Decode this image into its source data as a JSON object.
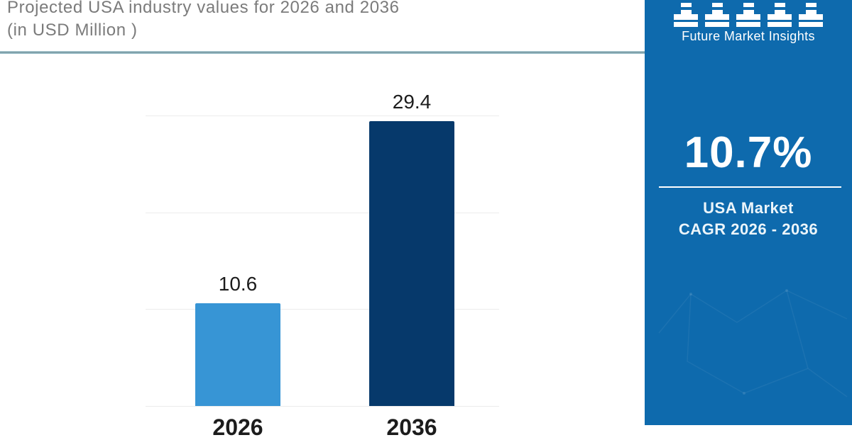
{
  "header": {
    "title_line1": "Projected USA industry values for 2026 and 2036",
    "title_line2": "(in USD Million )"
  },
  "branding": {
    "logo_icon": "bar-columns-logo",
    "logo_text": "Future Market Insights"
  },
  "side_panel": {
    "background_color": "#0e6aad",
    "cagr_value": "10.7%",
    "cagr_label_line1": "USA Market",
    "cagr_label_line2": "CAGR 2026 - 2036"
  },
  "chart_data": {
    "type": "bar",
    "title": "Projected USA industry values for 2026 and 2036 (in USD Million)",
    "categories": [
      "2026",
      "2036"
    ],
    "values": [
      10.6,
      29.4
    ],
    "data_labels": [
      "10.6",
      "29.4"
    ],
    "bar_colors": [
      "#3795d5",
      "#06396b"
    ],
    "ylim": [
      0,
      30
    ],
    "gridline_values": [
      0,
      10,
      20,
      30
    ],
    "grid": true,
    "legend": false,
    "xlabel": "",
    "ylabel": ""
  }
}
